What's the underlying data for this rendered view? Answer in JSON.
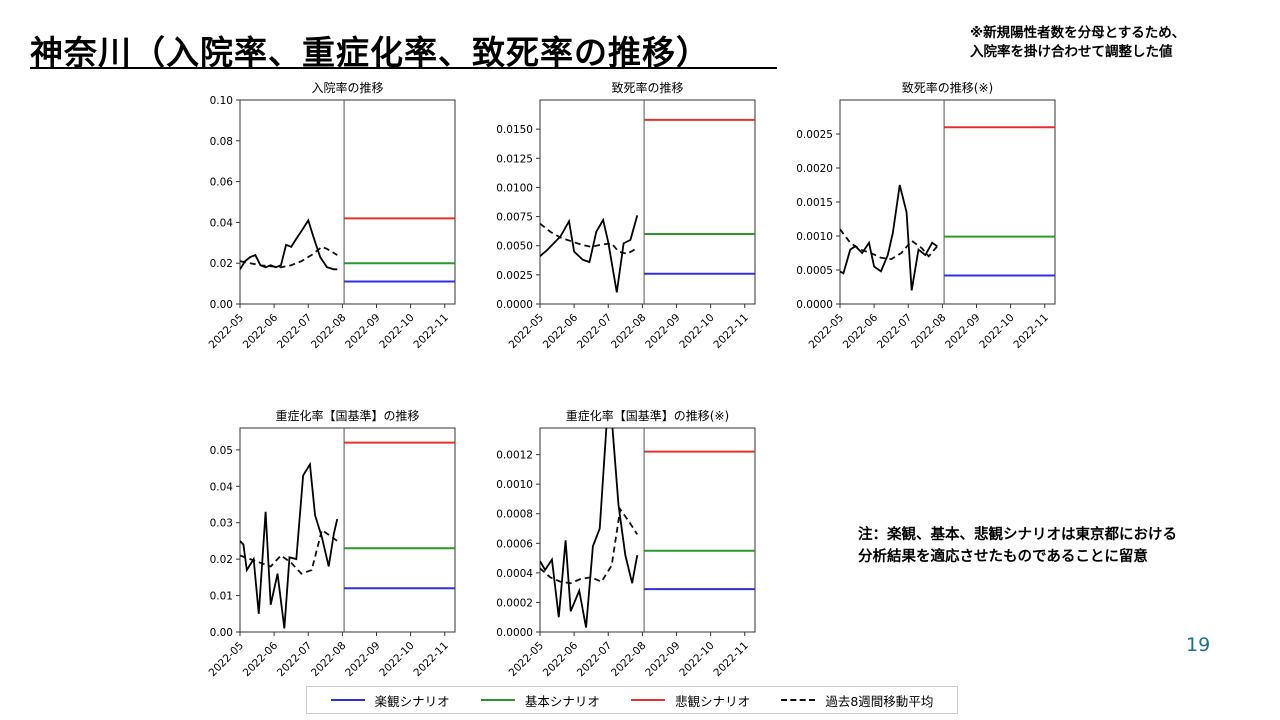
{
  "slide": {
    "title": "神奈川（入院率、重症化率、致死率の推移）",
    "note_top_line1": "※新規陽性者数を分母とするため、",
    "note_top_line2": "入院率を掛け合わせて調整した値",
    "note_bottom_line1": "注：楽観、基本、悲観シナリオは東京都における",
    "note_bottom_line2": "分析結果を適応させたものであることに留意",
    "page_number": "19"
  },
  "legend": [
    {
      "label": "楽観シナリオ",
      "color": "#3030d8",
      "dash": false
    },
    {
      "label": "基本シナリオ",
      "color": "#2a9a2a",
      "dash": false
    },
    {
      "label": "悲観シナリオ",
      "color": "#e53030",
      "dash": false
    },
    {
      "label": "過去8週間移動平均",
      "color": "#111111",
      "dash": true
    }
  ],
  "chart_data": [
    {
      "type": "line",
      "title": "入院率の推移",
      "x_ticks": [
        "2022-05",
        "2022-06",
        "2022-07",
        "2022-08",
        "2022-09",
        "2022-10",
        "2022-11"
      ],
      "y_ticks": [
        "0.00",
        "0.02",
        "0.04",
        "0.06",
        "0.08",
        "0.10"
      ],
      "ylim": [
        0,
        0.1
      ],
      "divider_x": 3.05,
      "observed": [
        [
          0.0,
          0.017
        ],
        [
          0.15,
          0.021
        ],
        [
          0.3,
          0.023
        ],
        [
          0.45,
          0.024
        ],
        [
          0.6,
          0.019
        ],
        [
          0.75,
          0.018
        ],
        [
          0.9,
          0.019
        ],
        [
          1.05,
          0.018
        ],
        [
          1.2,
          0.019
        ],
        [
          1.35,
          0.029
        ],
        [
          1.5,
          0.028
        ],
        [
          1.65,
          0.032
        ],
        [
          1.85,
          0.037
        ],
        [
          2.0,
          0.041
        ],
        [
          2.15,
          0.033
        ],
        [
          2.35,
          0.023
        ],
        [
          2.55,
          0.018
        ],
        [
          2.75,
          0.017
        ],
        [
          2.85,
          0.017
        ]
      ],
      "moving_average": [
        [
          0.0,
          0.021
        ],
        [
          0.3,
          0.02
        ],
        [
          0.6,
          0.019
        ],
        [
          0.9,
          0.0185
        ],
        [
          1.2,
          0.018
        ],
        [
          1.5,
          0.019
        ],
        [
          1.8,
          0.021
        ],
        [
          2.1,
          0.024
        ],
        [
          2.4,
          0.028
        ],
        [
          2.55,
          0.027
        ],
        [
          2.85,
          0.024
        ]
      ],
      "scenarios": {
        "optimistic": 0.011,
        "base": 0.02,
        "pessimistic": 0.042
      }
    },
    {
      "type": "line",
      "title": "致死率の推移",
      "x_ticks": [
        "2022-05",
        "2022-06",
        "2022-07",
        "2022-08",
        "2022-09",
        "2022-10",
        "2022-11"
      ],
      "y_ticks": [
        "0.0000",
        "0.0025",
        "0.0050",
        "0.0075",
        "0.0100",
        "0.0125",
        "0.0150"
      ],
      "ylim": [
        0,
        0.0175
      ],
      "divider_x": 3.05,
      "observed": [
        [
          0.0,
          0.0041
        ],
        [
          0.2,
          0.0046
        ],
        [
          0.4,
          0.0052
        ],
        [
          0.6,
          0.0058
        ],
        [
          0.85,
          0.0071
        ],
        [
          1.0,
          0.0045
        ],
        [
          1.25,
          0.0038
        ],
        [
          1.45,
          0.0036
        ],
        [
          1.65,
          0.0062
        ],
        [
          1.85,
          0.0072
        ],
        [
          2.0,
          0.0053
        ],
        [
          2.25,
          0.001
        ],
        [
          2.45,
          0.0052
        ],
        [
          2.65,
          0.0055
        ],
        [
          2.85,
          0.0076
        ]
      ],
      "moving_average": [
        [
          0.0,
          0.0069
        ],
        [
          0.3,
          0.0062
        ],
        [
          0.6,
          0.0057
        ],
        [
          0.9,
          0.0054
        ],
        [
          1.2,
          0.0051
        ],
        [
          1.5,
          0.0049
        ],
        [
          1.8,
          0.0051
        ],
        [
          2.1,
          0.0052
        ],
        [
          2.3,
          0.0045
        ],
        [
          2.55,
          0.0043
        ],
        [
          2.85,
          0.0048
        ]
      ],
      "scenarios": {
        "optimistic": 0.0026,
        "base": 0.006,
        "pessimistic": 0.0158
      }
    },
    {
      "type": "line",
      "title": "致死率の推移(※)",
      "x_ticks": [
        "2022-05",
        "2022-06",
        "2022-07",
        "2022-08",
        "2022-09",
        "2022-10",
        "2022-11"
      ],
      "y_ticks": [
        "0.0000",
        "0.0005",
        "0.0010",
        "0.0015",
        "0.0020",
        "0.0025"
      ],
      "ylim": [
        0,
        0.003
      ],
      "divider_x": 3.05,
      "observed": [
        [
          0.0,
          0.00048
        ],
        [
          0.1,
          0.00045
        ],
        [
          0.3,
          0.0008
        ],
        [
          0.45,
          0.00085
        ],
        [
          0.65,
          0.00075
        ],
        [
          0.85,
          0.0009
        ],
        [
          1.0,
          0.00055
        ],
        [
          1.2,
          0.00048
        ],
        [
          1.4,
          0.00072
        ],
        [
          1.55,
          0.00105
        ],
        [
          1.75,
          0.00175
        ],
        [
          1.95,
          0.00135
        ],
        [
          2.1,
          0.0002
        ],
        [
          2.3,
          0.0008
        ],
        [
          2.5,
          0.00072
        ],
        [
          2.7,
          0.0009
        ],
        [
          2.85,
          0.00085
        ]
      ],
      "moving_average": [
        [
          0.0,
          0.0011
        ],
        [
          0.3,
          0.0009
        ],
        [
          0.6,
          0.0008
        ],
        [
          0.9,
          0.00075
        ],
        [
          1.2,
          0.00068
        ],
        [
          1.5,
          0.00066
        ],
        [
          1.8,
          0.00075
        ],
        [
          2.1,
          0.00093
        ],
        [
          2.4,
          0.00082
        ],
        [
          2.6,
          0.0007
        ],
        [
          2.85,
          0.00085
        ]
      ],
      "scenarios": {
        "optimistic": 0.00042,
        "base": 0.00099,
        "pessimistic": 0.0026
      }
    },
    {
      "type": "line",
      "title": "重症化率【国基準】の推移",
      "x_ticks": [
        "2022-05",
        "2022-06",
        "2022-07",
        "2022-08",
        "2022-09",
        "2022-10",
        "2022-11"
      ],
      "y_ticks": [
        "0.00",
        "0.01",
        "0.02",
        "0.03",
        "0.04",
        "0.05"
      ],
      "ylim": [
        0,
        0.056
      ],
      "divider_x": 3.05,
      "observed": [
        [
          0.0,
          0.025
        ],
        [
          0.1,
          0.024
        ],
        [
          0.2,
          0.017
        ],
        [
          0.4,
          0.02
        ],
        [
          0.55,
          0.005
        ],
        [
          0.75,
          0.033
        ],
        [
          0.9,
          0.0075
        ],
        [
          1.1,
          0.016
        ],
        [
          1.3,
          0.001
        ],
        [
          1.45,
          0.0205
        ],
        [
          1.65,
          0.02
        ],
        [
          1.85,
          0.043
        ],
        [
          2.05,
          0.046
        ],
        [
          2.2,
          0.032
        ],
        [
          2.4,
          0.026
        ],
        [
          2.6,
          0.018
        ],
        [
          2.75,
          0.027
        ],
        [
          2.85,
          0.031
        ]
      ],
      "moving_average": [
        [
          0.0,
          0.021
        ],
        [
          0.3,
          0.02
        ],
        [
          0.6,
          0.019
        ],
        [
          0.9,
          0.018
        ],
        [
          1.2,
          0.021
        ],
        [
          1.5,
          0.019
        ],
        [
          1.8,
          0.016
        ],
        [
          2.1,
          0.017
        ],
        [
          2.4,
          0.028
        ],
        [
          2.55,
          0.027
        ],
        [
          2.85,
          0.025
        ]
      ],
      "scenarios": {
        "optimistic": 0.012,
        "base": 0.023,
        "pessimistic": 0.052
      }
    },
    {
      "type": "line",
      "title": "重症化率【国基準】の推移(※)",
      "x_ticks": [
        "2022-05",
        "2022-06",
        "2022-07",
        "2022-08",
        "2022-09",
        "2022-10",
        "2022-11"
      ],
      "y_ticks": [
        "0.0000",
        "0.0002",
        "0.0004",
        "0.0006",
        "0.0008",
        "0.0010",
        "0.0012"
      ],
      "ylim": [
        0,
        0.00138
      ],
      "divider_x": 3.05,
      "observed": [
        [
          0.0,
          0.00048
        ],
        [
          0.15,
          0.00042
        ],
        [
          0.35,
          0.00049
        ],
        [
          0.55,
          0.0001
        ],
        [
          0.75,
          0.00062
        ],
        [
          0.9,
          0.00014
        ],
        [
          1.15,
          0.00028
        ],
        [
          1.35,
          3e-05
        ],
        [
          1.55,
          0.00058
        ],
        [
          1.75,
          0.0007
        ],
        [
          1.95,
          0.0014
        ],
        [
          2.1,
          0.00145
        ],
        [
          2.3,
          0.00086
        ],
        [
          2.5,
          0.00052
        ],
        [
          2.7,
          0.00033
        ],
        [
          2.85,
          0.00052
        ]
      ],
      "moving_average": [
        [
          0.0,
          0.00043
        ],
        [
          0.3,
          0.00037
        ],
        [
          0.6,
          0.00034
        ],
        [
          0.9,
          0.00033
        ],
        [
          1.2,
          0.00036
        ],
        [
          1.5,
          0.00037
        ],
        [
          1.8,
          0.00034
        ],
        [
          2.1,
          0.00045
        ],
        [
          2.35,
          0.00083
        ],
        [
          2.6,
          0.00075
        ],
        [
          2.85,
          0.00066
        ]
      ],
      "scenarios": {
        "optimistic": 0.00029,
        "base": 0.00055,
        "pessimistic": 0.00122
      }
    }
  ]
}
